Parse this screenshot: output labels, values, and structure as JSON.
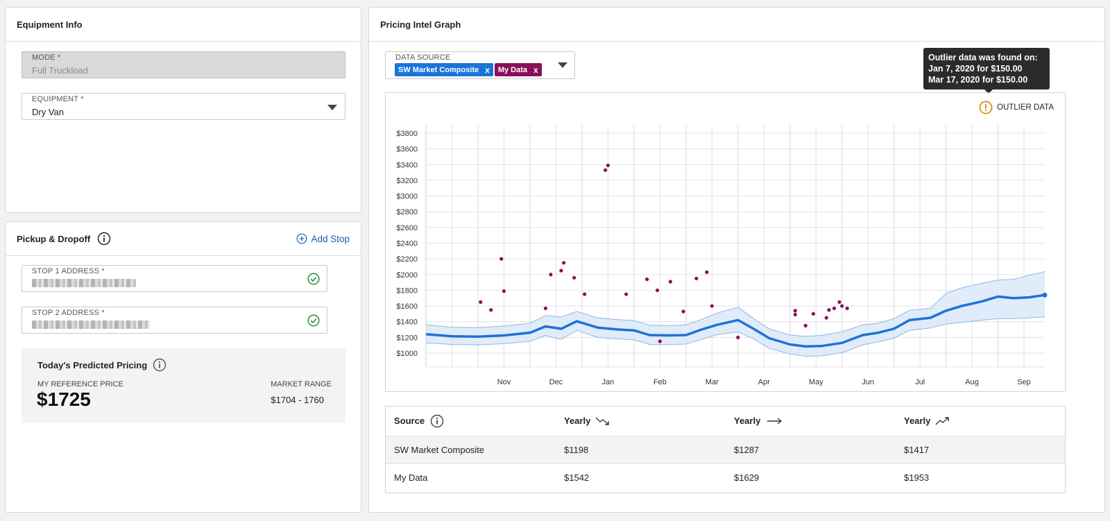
{
  "equipment_panel": {
    "title": "Equipment Info",
    "mode": {
      "label": "MODE *",
      "value": "Full Truckload"
    },
    "equipment": {
      "label": "EQUIPMENT *",
      "value": "Dry Van"
    }
  },
  "pickup_panel": {
    "title": "Pickup & Dropoff",
    "add_stop_label": "Add Stop",
    "stop1": {
      "label": "STOP 1 ADDRESS *"
    },
    "stop2": {
      "label": "STOP 2 ADDRESS *"
    },
    "pricing": {
      "title": "Today's Predicted Pricing",
      "reference_label": "MY REFERENCE PRICE",
      "reference_value": "$1725",
      "range_label": "MARKET RANGE",
      "range_value": "$1704 - 1760"
    }
  },
  "graph_panel": {
    "title": "Pricing Intel Graph",
    "data_source_label": "DATA SOURCE",
    "chips": [
      {
        "label": "SW Market Composite",
        "color": "#1a73d9"
      },
      {
        "label": "My Data",
        "color": "#8a0e5a"
      }
    ],
    "chip_remove": "x",
    "outlier_label": "OUTLIER DATA",
    "tooltip": {
      "line1": "Outlier data was found on:",
      "line2": "Jan 7, 2020 for $150.00",
      "line3": "Mar 17, 2020 for $150.00"
    }
  },
  "colors": {
    "composite": "#1a73d9",
    "my_data": "#8a0e5a",
    "band": "#dbe9f8",
    "outlier": "#e08a00"
  },
  "chart_data": {
    "type": "line",
    "x_labels": [
      "Nov",
      "Dec",
      "Jan",
      "Feb",
      "Mar",
      "Apr",
      "May",
      "Jun",
      "Jul",
      "Aug",
      "Sep"
    ],
    "y_ticks": [
      "$1000",
      "$1200",
      "$1400",
      "$1600",
      "$1800",
      "$2000",
      "$2200",
      "$2400",
      "$2600",
      "$2800",
      "$3000",
      "$3200",
      "$3400",
      "$3600",
      "$3800"
    ],
    "ylim": [
      1000,
      3800
    ],
    "x_range_months": [
      -1,
      10.9
    ],
    "grid": true,
    "series": [
      {
        "name": "SW Market Composite",
        "kind": "line-with-band",
        "x": [
          -1.0,
          -0.5,
          0.0,
          0.5,
          1.0,
          1.3,
          1.6,
          1.9,
          2.3,
          2.7,
          3.0,
          3.3,
          3.7,
          4.0,
          4.3,
          4.6,
          5.0,
          5.3,
          5.6,
          6.0,
          6.3,
          6.6,
          7.0,
          7.4,
          7.7,
          8.0,
          8.3,
          8.7,
          9.0,
          9.3,
          9.7,
          10.0,
          10.3,
          10.6,
          10.9
        ],
        "y": [
          1240,
          1215,
          1210,
          1225,
          1260,
          1340,
          1310,
          1405,
          1325,
          1300,
          1290,
          1230,
          1225,
          1230,
          1300,
          1360,
          1420,
          1310,
          1190,
          1110,
          1085,
          1090,
          1130,
          1230,
          1260,
          1310,
          1420,
          1450,
          1540,
          1600,
          1660,
          1720,
          1700,
          1710,
          1740
        ],
        "upper": [
          1360,
          1330,
          1325,
          1345,
          1380,
          1480,
          1460,
          1530,
          1450,
          1425,
          1415,
          1355,
          1350,
          1360,
          1430,
          1510,
          1585,
          1440,
          1310,
          1230,
          1215,
          1225,
          1270,
          1360,
          1380,
          1440,
          1545,
          1570,
          1760,
          1830,
          1890,
          1930,
          1940,
          1990,
          2040
        ],
        "lower": [
          1130,
          1110,
          1105,
          1120,
          1150,
          1225,
          1175,
          1290,
          1200,
          1180,
          1170,
          1110,
          1110,
          1115,
          1175,
          1235,
          1270,
          1180,
          1060,
          990,
          960,
          965,
          1005,
          1105,
          1145,
          1190,
          1290,
          1320,
          1370,
          1390,
          1420,
          1440,
          1440,
          1450,
          1460
        ]
      },
      {
        "name": "My Data",
        "kind": "scatter",
        "x": [
          0.05,
          0.25,
          0.45,
          0.5,
          1.3,
          1.4,
          1.6,
          1.65,
          1.85,
          2.05,
          2.45,
          2.5,
          2.85,
          3.25,
          3.45,
          3.5,
          3.7,
          3.95,
          4.2,
          4.4,
          4.5,
          5.0,
          6.1,
          6.1,
          6.3,
          6.45,
          6.7,
          6.75,
          6.85,
          6.95,
          7.0,
          7.1
        ],
        "y": [
          1650,
          1550,
          2200,
          1790,
          1570,
          2000,
          2050,
          2150,
          1960,
          1750,
          3330,
          3390,
          1750,
          1940,
          1800,
          1150,
          1910,
          1530,
          1950,
          2030,
          1600,
          1200,
          1540,
          1490,
          1350,
          1500,
          1450,
          1550,
          1570,
          1650,
          1600,
          1570
        ]
      }
    ]
  },
  "table": {
    "headers": [
      "Source",
      "Yearly",
      "Yearly",
      "Yearly"
    ],
    "rows": [
      [
        "SW Market Composite",
        "$1198",
        "$1287",
        "$1417"
      ],
      [
        "My Data",
        "$1542",
        "$1629",
        "$1953"
      ]
    ]
  }
}
